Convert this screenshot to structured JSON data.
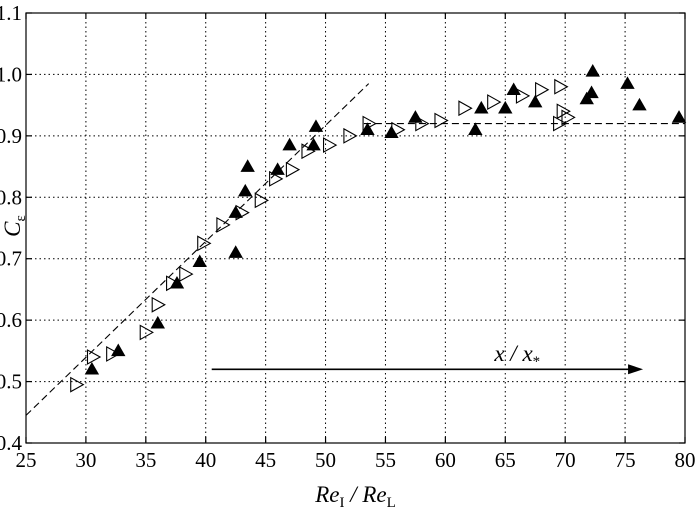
{
  "chart_data": {
    "type": "scatter",
    "title": "",
    "xlim": [
      25,
      80
    ],
    "ylim": [
      0.4,
      1.1
    ],
    "xticks": [
      25,
      30,
      35,
      40,
      45,
      50,
      55,
      60,
      65,
      70,
      75,
      80
    ],
    "yticks": [
      0.4,
      0.5,
      0.6,
      0.7,
      0.8,
      0.9,
      1.0,
      1.1
    ],
    "xtick_labels": [
      "25",
      "30",
      "35",
      "40",
      "45",
      "50",
      "55",
      "60",
      "65",
      "70",
      "75",
      "80"
    ],
    "ytick_labels": [
      "0.4",
      "0.5",
      "0.6",
      "0.7",
      "0.8",
      "0.9",
      "1.0",
      "1.1"
    ],
    "grid": true,
    "xlabel": {
      "num": "Re",
      "num_sub": "I",
      "sep": " / ",
      "den": "Re",
      "den_sub": "L"
    },
    "ylabel": {
      "main": "C",
      "sub": "ε"
    },
    "annotation": {
      "text_main": "x / x",
      "text_sub": "*",
      "arrow_from": [
        40.5,
        0.52
      ],
      "arrow_to": [
        76.5,
        0.52
      ],
      "text_at": [
        66,
        0.545
      ]
    },
    "series": [
      {
        "marker": "filled-up-triangle",
        "points": [
          [
            30.5,
            0.52
          ],
          [
            32.7,
            0.55
          ],
          [
            36.0,
            0.595
          ],
          [
            37.6,
            0.66
          ],
          [
            39.5,
            0.695
          ],
          [
            42.5,
            0.71
          ],
          [
            42.5,
            0.775
          ],
          [
            43.3,
            0.81
          ],
          [
            43.5,
            0.85
          ],
          [
            46.0,
            0.845
          ],
          [
            47.0,
            0.885
          ],
          [
            49.0,
            0.885
          ],
          [
            49.2,
            0.915
          ],
          [
            53.5,
            0.91
          ],
          [
            55.5,
            0.905
          ],
          [
            57.5,
            0.93
          ],
          [
            62.5,
            0.91
          ],
          [
            63.0,
            0.945
          ],
          [
            65.0,
            0.945
          ],
          [
            65.7,
            0.975
          ],
          [
            67.5,
            0.955
          ],
          [
            71.8,
            0.96
          ],
          [
            72.2,
            0.97
          ],
          [
            72.3,
            1.005
          ],
          [
            75.2,
            0.985
          ],
          [
            76.2,
            0.95
          ],
          [
            79.5,
            0.93
          ]
        ]
      },
      {
        "marker": "open-right-triangle",
        "points": [
          [
            29.2,
            0.495
          ],
          [
            30.6,
            0.54
          ],
          [
            32.2,
            0.545
          ],
          [
            35.0,
            0.58
          ],
          [
            36.0,
            0.625
          ],
          [
            37.2,
            0.66
          ],
          [
            38.3,
            0.675
          ],
          [
            39.8,
            0.725
          ],
          [
            41.4,
            0.755
          ],
          [
            43.0,
            0.775
          ],
          [
            44.6,
            0.795
          ],
          [
            45.8,
            0.83
          ],
          [
            47.2,
            0.845
          ],
          [
            48.5,
            0.875
          ],
          [
            50.3,
            0.885
          ],
          [
            52.0,
            0.9
          ],
          [
            53.6,
            0.92
          ],
          [
            56.0,
            0.91
          ],
          [
            58.0,
            0.92
          ],
          [
            59.6,
            0.925
          ],
          [
            61.6,
            0.945
          ],
          [
            64.0,
            0.955
          ],
          [
            66.4,
            0.965
          ],
          [
            68.0,
            0.975
          ],
          [
            69.6,
            0.98
          ],
          [
            69.5,
            0.92
          ],
          [
            69.8,
            0.94
          ],
          [
            70.2,
            0.93
          ]
        ]
      }
    ],
    "reference_lines": [
      {
        "style": "dashed",
        "from": [
          25,
          0.445
        ],
        "to": [
          53.6,
          0.985
        ]
      },
      {
        "style": "dashed",
        "from": [
          53.2,
          0.92
        ],
        "to": [
          80,
          0.92
        ]
      }
    ]
  }
}
